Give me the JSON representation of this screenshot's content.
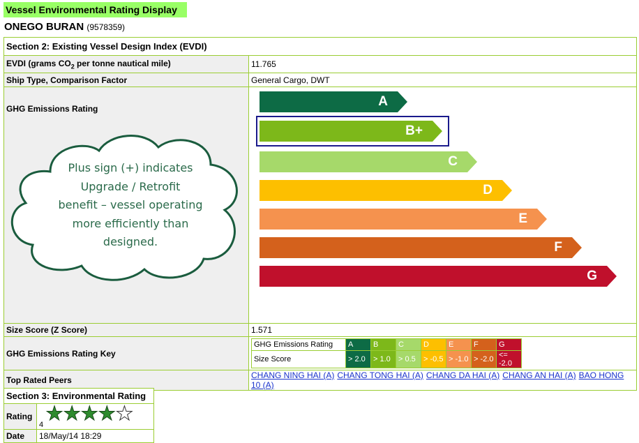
{
  "header": {
    "title": "Vessel Environmental Rating Display",
    "vessel_name": "ONEGO BURAN",
    "imo": "(9578359)"
  },
  "section2": {
    "title": "Section 2: Existing Vessel Design Index (EVDI)",
    "evdi_label_pre": "EVDI (grams CO",
    "evdi_label_sub": "2",
    "evdi_label_post": " per tonne nautical mile)",
    "evdi_value": "11.765",
    "ship_type_label": "Ship Type, Comparison Factor",
    "ship_type_value": "General Cargo, DWT",
    "ghg_label": "GHG Emissions Rating",
    "bars": [
      {
        "label": "A",
        "color": "#0d6b45"
      },
      {
        "label": "B+",
        "color": "#7db81a",
        "selected": true
      },
      {
        "label": "C",
        "color": "#a6d96a"
      },
      {
        "label": "D",
        "color": "#fdbf00"
      },
      {
        "label": "E",
        "color": "#f5924e"
      },
      {
        "label": "F",
        "color": "#d4611c"
      },
      {
        "label": "G",
        "color": "#c0102c"
      }
    ],
    "size_score_label": "Size Score (Z Score)",
    "size_score_value": "1.571",
    "key_label": "GHG Emissions Rating Key",
    "key": {
      "row1_label": "GHG Emissions Rating",
      "row2_label": "Size Score",
      "columns": [
        {
          "grade": "A",
          "score": "> 2.0",
          "color": "#0d6b45"
        },
        {
          "grade": "B",
          "score": "> 1.0",
          "color": "#7db81a"
        },
        {
          "grade": "C",
          "score": "> 0.5",
          "color": "#a6d96a"
        },
        {
          "grade": "D",
          "score": "> -0.5",
          "color": "#fdbf00"
        },
        {
          "grade": "E",
          "score": "> -1.0",
          "color": "#f5924e"
        },
        {
          "grade": "F",
          "score": "> -2.0",
          "color": "#d4611c"
        },
        {
          "grade": "G",
          "score": "<= -2.0",
          "color": "#c0102c"
        }
      ]
    },
    "peers_label": "Top Rated Peers",
    "peers": [
      "CHANG NING HAI (A)",
      "CHANG TONG HAI (A)",
      "CHANG DA HAI (A)",
      "CHANG AN HAI (A)",
      "BAO HONG 10 (A)"
    ]
  },
  "callout": {
    "lines": [
      "Plus sign (+) indicates",
      "Upgrade / Retrofit",
      "benefit – vessel operating",
      "more efficiently than",
      "designed."
    ]
  },
  "section3": {
    "title": "Section 3: Environmental Rating",
    "rating_label": "Rating",
    "rating_value": "4",
    "stars_filled": 4,
    "stars_total": 5,
    "date_label": "Date",
    "date_value": "18/May/14 18:29"
  }
}
